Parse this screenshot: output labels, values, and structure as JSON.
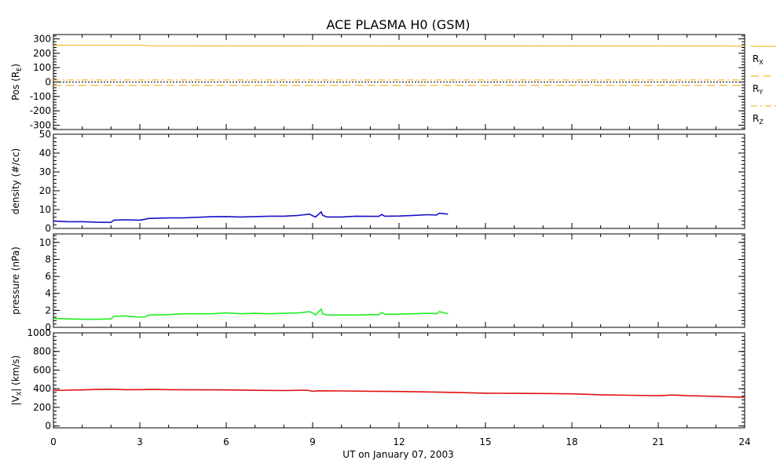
{
  "chart_data": {
    "title": "ACE PLASMA H0 (GSM)",
    "xlabel": "UT on January 07, 2003",
    "xlim": [
      0,
      24
    ],
    "xticks": [
      0,
      3,
      6,
      9,
      12,
      15,
      18,
      21,
      24
    ],
    "panels": [
      {
        "type": "line",
        "ylabel_main": "Pos (R",
        "ylabel_sub": "E",
        "ylabel_end": ")",
        "ylim": [
          -330,
          330
        ],
        "yticks": [
          -300,
          -200,
          -100,
          0,
          100,
          200,
          300
        ],
        "zero_line": true,
        "series": [
          {
            "main": "R",
            "sub": "X",
            "color": "#f5a800",
            "dash": "solid",
            "x": [
              0,
              3.1,
              3.3,
              24
            ],
            "y": [
              256,
              256,
              252,
              250
            ]
          },
          {
            "main": "R",
            "sub": "Y",
            "color": "#f5a800",
            "dash": "dash",
            "x": [
              0,
              24
            ],
            "y": [
              -23,
              -23
            ]
          },
          {
            "main": "R",
            "sub": "Z",
            "color": "#f5a800",
            "dash": "dashdot",
            "x": [
              0,
              24
            ],
            "y": [
              14,
              14
            ]
          }
        ]
      },
      {
        "type": "line",
        "ylabel_main": "density (#/cc)",
        "ylim": [
          0,
          50
        ],
        "yticks": [
          0,
          10,
          20,
          30,
          40,
          50
        ],
        "series": [
          {
            "color": "#1a10c8",
            "x": [
              0,
              0.5,
              1,
              1.5,
              2,
              2.1,
              2.5,
              3,
              3.2,
              3.3,
              4,
              4.5,
              5,
              5.5,
              6,
              6.5,
              7,
              7.5,
              8,
              8.5,
              8.9,
              9,
              9.1,
              9.3,
              9.35,
              9.5,
              10,
              10.5,
              11,
              11.3,
              11.4,
              11.5,
              12,
              12.5,
              13,
              13.3,
              13.4,
              13.7
            ],
            "y": [
              3.9,
              3.6,
              3.6,
              3.3,
              3.2,
              4.4,
              4.6,
              4.4,
              4.9,
              5.3,
              5.6,
              5.6,
              5.9,
              6.2,
              6.3,
              6.1,
              6.3,
              6.5,
              6.5,
              6.9,
              7.6,
              6.7,
              6.1,
              8.8,
              6.9,
              6.1,
              6.1,
              6.5,
              6.4,
              6.4,
              7.4,
              6.5,
              6.6,
              6.9,
              7.3,
              7.1,
              8.1,
              7.6
            ]
          }
        ]
      },
      {
        "type": "line",
        "ylabel_main": "pressure (nPa)",
        "ylim": [
          0,
          11
        ],
        "yticks": [
          0,
          2,
          4,
          6,
          8,
          10
        ],
        "series": [
          {
            "color": "#22ee22",
            "x": [
              0,
              0.5,
              1,
              1.5,
              2,
              2.1,
              2.5,
              3,
              3.2,
              3.3,
              4,
              4.5,
              5,
              5.5,
              6,
              6.5,
              7,
              7.5,
              8,
              8.5,
              8.9,
              9,
              9.1,
              9.3,
              9.35,
              9.5,
              10,
              10.5,
              11,
              11.3,
              11.4,
              11.5,
              12,
              12.5,
              13,
              13.3,
              13.4,
              13.7
            ],
            "y": [
              1.05,
              1.0,
              0.95,
              0.95,
              1.0,
              1.3,
              1.35,
              1.2,
              1.25,
              1.45,
              1.5,
              1.6,
              1.6,
              1.6,
              1.7,
              1.6,
              1.65,
              1.6,
              1.65,
              1.7,
              1.85,
              1.7,
              1.45,
              2.15,
              1.6,
              1.45,
              1.45,
              1.45,
              1.5,
              1.5,
              1.75,
              1.55,
              1.55,
              1.6,
              1.65,
              1.6,
              1.85,
              1.6
            ]
          }
        ]
      },
      {
        "type": "line",
        "ylabel_main": "|V",
        "ylabel_sub": "X",
        "ylabel_end": "| (km/s)",
        "ylim": [
          -20,
          1000
        ],
        "yticks": [
          0,
          200,
          400,
          600,
          800,
          1000
        ],
        "series": [
          {
            "color": "#e01010",
            "x": [
              0,
              0.5,
              1,
              1.5,
              2,
              2.5,
              3,
              3.5,
              4,
              5,
              6,
              7,
              8,
              8.8,
              9,
              9.2,
              10,
              11,
              12,
              13,
              14,
              15,
              16,
              17,
              18,
              18.5,
              19,
              20,
              21,
              21.5,
              22,
              22.5,
              23,
              23.5,
              24
            ],
            "y": [
              380,
              385,
              387,
              392,
              395,
              390,
              390,
              392,
              390,
              388,
              387,
              383,
              380,
              385,
              372,
              378,
              376,
              373,
              370,
              365,
              360,
              352,
              350,
              348,
              345,
              340,
              335,
              330,
              325,
              332,
              325,
              322,
              318,
              312,
              308
            ]
          }
        ]
      }
    ]
  }
}
